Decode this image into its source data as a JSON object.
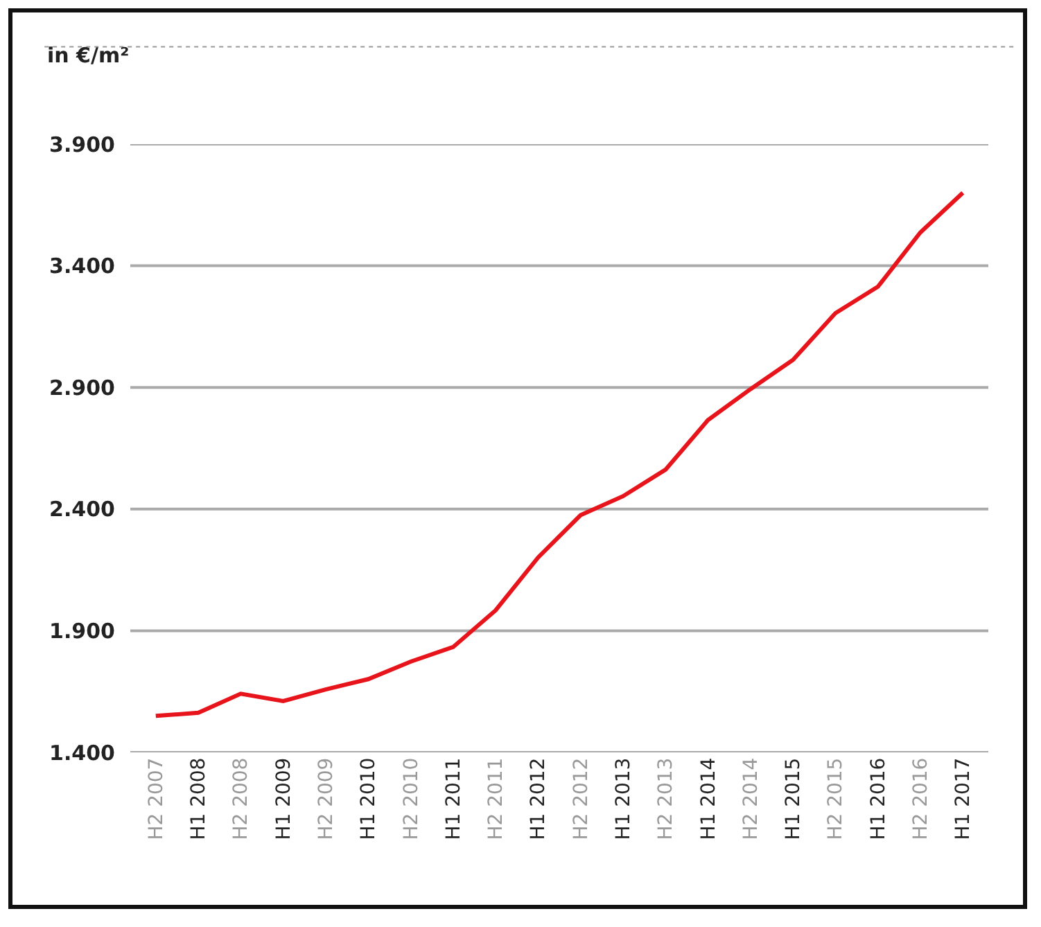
{
  "chart_data": {
    "type": "line",
    "ylabel": "in €/m²",
    "categories": [
      "H2 2007",
      "H1 2008",
      "H2 2008",
      "H1 2009",
      "H2 2009",
      "H1 2010",
      "H2 2010",
      "H1 2011",
      "H2 2011",
      "H1 2012",
      "H2 2012",
      "H1 2013",
      "H2 2013",
      "H1 2014",
      "H2 2014",
      "H1 2015",
      "H2 2015",
      "H1 2016",
      "H2 2016",
      "H1 2017"
    ],
    "series": [
      {
        "color": "#e8141b",
        "values": [
          1550,
          1563,
          1641,
          1611,
          1659,
          1701,
          1773,
          1833,
          1984,
          2201,
          2375,
          2453,
          2562,
          2766,
          2893,
          3013,
          3205,
          3314,
          3537,
          3700
        ]
      }
    ],
    "ylim": [
      1400,
      3900
    ],
    "yticks": [
      {
        "value": 1400,
        "label": "1.400"
      },
      {
        "value": 1900,
        "label": "1.900"
      },
      {
        "value": 2400,
        "label": "2.400"
      },
      {
        "value": 2900,
        "label": "2.900"
      },
      {
        "value": 3400,
        "label": "3.400"
      },
      {
        "value": 3900,
        "label": "3.900"
      }
    ],
    "grid": "y",
    "marker": "none",
    "line_style": "solid"
  }
}
